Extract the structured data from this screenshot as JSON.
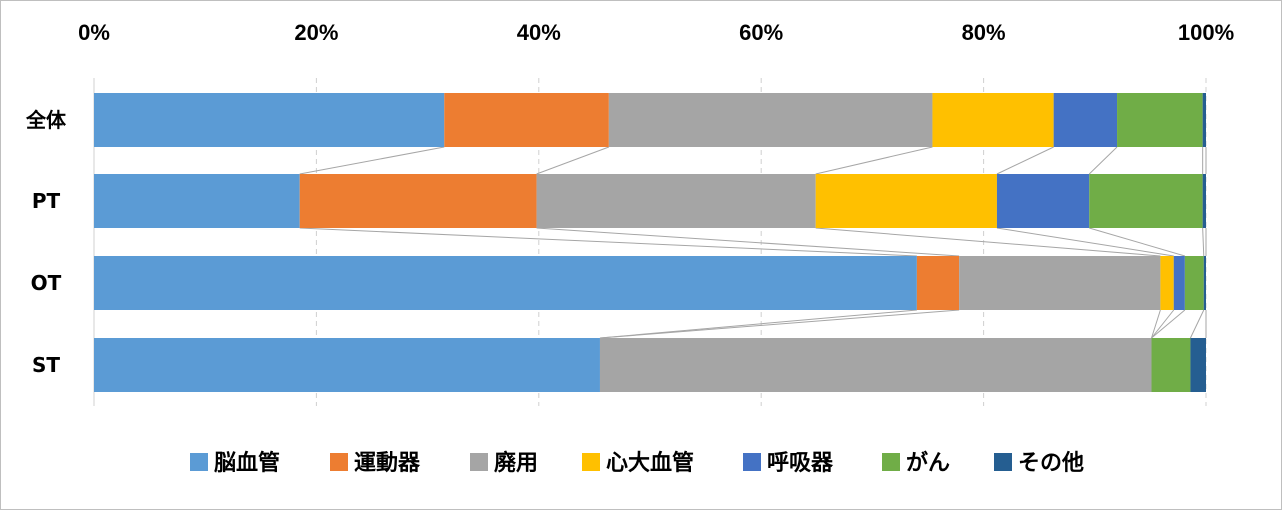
{
  "chart_data": {
    "type": "bar",
    "orientation": "horizontal",
    "stacked": "percent",
    "title": "",
    "xlabel": "",
    "ylabel": "",
    "xlim": [
      0,
      100
    ],
    "x_ticks": [
      "0%",
      "20%",
      "40%",
      "60%",
      "80%",
      "100%"
    ],
    "x_axis_position": "top",
    "grid": "vertical dashed",
    "series_connector_lines": true,
    "legend_position": "bottom",
    "categories": [
      "全体",
      "PT",
      "OT",
      "ST"
    ],
    "series": [
      {
        "name": "脳血管",
        "color": "#5B9BD5",
        "values": [
          31.5,
          18.5,
          74.0,
          45.5
        ]
      },
      {
        "name": "運動器",
        "color": "#ED7D31",
        "values": [
          14.8,
          21.3,
          3.8,
          0.0
        ]
      },
      {
        "name": "廃用",
        "color": "#A5A5A5",
        "values": [
          29.1,
          25.1,
          18.1,
          49.6
        ]
      },
      {
        "name": "心大血管",
        "color": "#FFC000",
        "values": [
          10.9,
          16.3,
          1.2,
          0.0
        ]
      },
      {
        "name": "呼吸器",
        "color": "#4472C4",
        "values": [
          5.7,
          8.3,
          1.0,
          0.0
        ]
      },
      {
        "name": "がん",
        "color": "#70AD47",
        "values": [
          7.7,
          10.2,
          1.7,
          3.5
        ]
      },
      {
        "name": "その他",
        "color": "#255E91",
        "values": [
          0.3,
          0.3,
          0.2,
          1.4
        ]
      }
    ]
  }
}
